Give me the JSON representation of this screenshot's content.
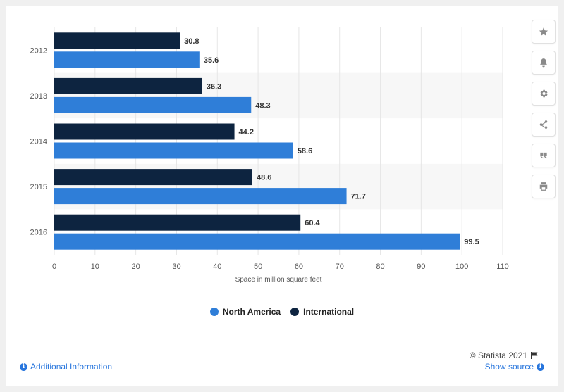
{
  "chart_data": {
    "type": "bar",
    "orientation": "horizontal",
    "categories": [
      "2012",
      "2013",
      "2014",
      "2015",
      "2016"
    ],
    "series": [
      {
        "name": "International",
        "values": [
          30.8,
          36.3,
          44.2,
          48.6,
          60.4
        ],
        "color": "#0d2440"
      },
      {
        "name": "North America",
        "values": [
          35.6,
          48.3,
          58.6,
          71.7,
          99.5
        ],
        "color": "#2f7ed8"
      }
    ],
    "xlabel": "Space in million square feet",
    "ylabel": "",
    "xlim": [
      0,
      110
    ],
    "xticks": [
      0,
      10,
      20,
      30,
      40,
      50,
      60,
      70,
      80,
      90,
      100,
      110
    ],
    "grid": true,
    "alternating_band_color": "#f7f7f7",
    "legend_position": "bottom-center",
    "legend": [
      "North America",
      "International"
    ]
  },
  "toolbar": {
    "icons": [
      "star-icon",
      "bell-icon",
      "gear-icon",
      "share-icon",
      "quote-icon",
      "print-icon"
    ]
  },
  "footer": {
    "additional_info": "Additional Information",
    "show_source": "Show source",
    "credit": "© Statista 2021"
  },
  "colors": {
    "international": "#0d2440",
    "north_america": "#2f7ed8",
    "link": "#2876dd"
  }
}
